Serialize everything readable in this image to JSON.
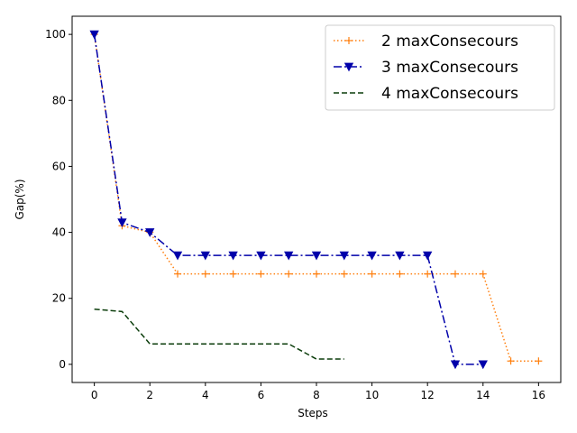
{
  "chart_data": {
    "type": "line",
    "xlabel": "Steps",
    "ylabel": "Gap(%)",
    "xlim": [
      -0.8,
      16.8
    ],
    "ylim": [
      -5.5,
      105.5
    ],
    "xticks": [
      0,
      2,
      4,
      6,
      8,
      10,
      12,
      14,
      16
    ],
    "yticks": [
      0,
      20,
      40,
      60,
      80,
      100
    ],
    "legend_position": "top-right",
    "grid": false,
    "series": [
      {
        "name": "2 maxConsecours",
        "color": "#ff7f0e",
        "linestyle": "dotted",
        "marker": "plus",
        "x": [
          0,
          1,
          2,
          3,
          4,
          5,
          6,
          7,
          8,
          9,
          10,
          11,
          12,
          13,
          14,
          15,
          16
        ],
        "y": [
          100,
          42,
          40,
          27.4,
          27.4,
          27.4,
          27.4,
          27.4,
          27.4,
          27.4,
          27.4,
          27.4,
          27.4,
          27.4,
          27.4,
          1,
          1
        ]
      },
      {
        "name": "3 maxConsecours",
        "color": "#0000aa",
        "linestyle": "dashdot",
        "marker": "triangle-down",
        "x": [
          0,
          1,
          2,
          3,
          4,
          5,
          6,
          7,
          8,
          9,
          10,
          11,
          12,
          13,
          14
        ],
        "y": [
          100,
          43,
          40,
          33,
          33,
          33,
          33,
          33,
          33,
          33,
          33,
          33,
          33,
          0,
          0
        ]
      },
      {
        "name": "4 maxConsecours",
        "color": "#0b3d0b",
        "linestyle": "dashed",
        "marker": "none",
        "x": [
          0,
          1,
          2,
          3,
          4,
          5,
          6,
          7,
          8,
          9
        ],
        "y": [
          16.7,
          16,
          6.2,
          6.2,
          6.2,
          6.2,
          6.2,
          6.2,
          1.6,
          1.6
        ]
      }
    ]
  }
}
